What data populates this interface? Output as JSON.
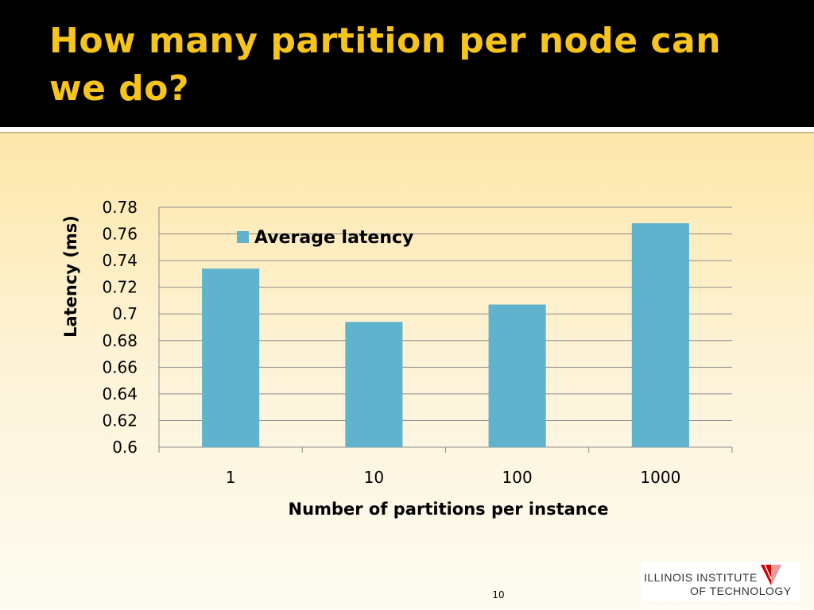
{
  "slide": {
    "title": "How many partition per node can we do?",
    "page_number": "10"
  },
  "logo": {
    "line1": "ILLINOIS INSTITUTE",
    "line2": "OF TECHNOLOGY",
    "colors": {
      "mark": "#cc0000",
      "mark_light": "#e89a9a",
      "text": "#333333"
    }
  },
  "colors": {
    "header_bg": "#000000",
    "title": "#f7c41c",
    "bar": "#60b3cc",
    "grid": "#8c8c8c"
  },
  "chart_data": {
    "type": "bar",
    "categories": [
      "1",
      "10",
      "100",
      "1000"
    ],
    "series": [
      {
        "name": "Average latency",
        "values": [
          0.734,
          0.694,
          0.707,
          0.768
        ]
      }
    ],
    "xlabel": "Number of partitions per instance",
    "ylabel": "Latency (ms)",
    "ylim": [
      0.6,
      0.78
    ],
    "yticks": [
      "0.6",
      "0.62",
      "0.64",
      "0.66",
      "0.68",
      "0.7",
      "0.72",
      "0.74",
      "0.76",
      "0.78"
    ],
    "grid": true,
    "legend_position": "top-left"
  }
}
